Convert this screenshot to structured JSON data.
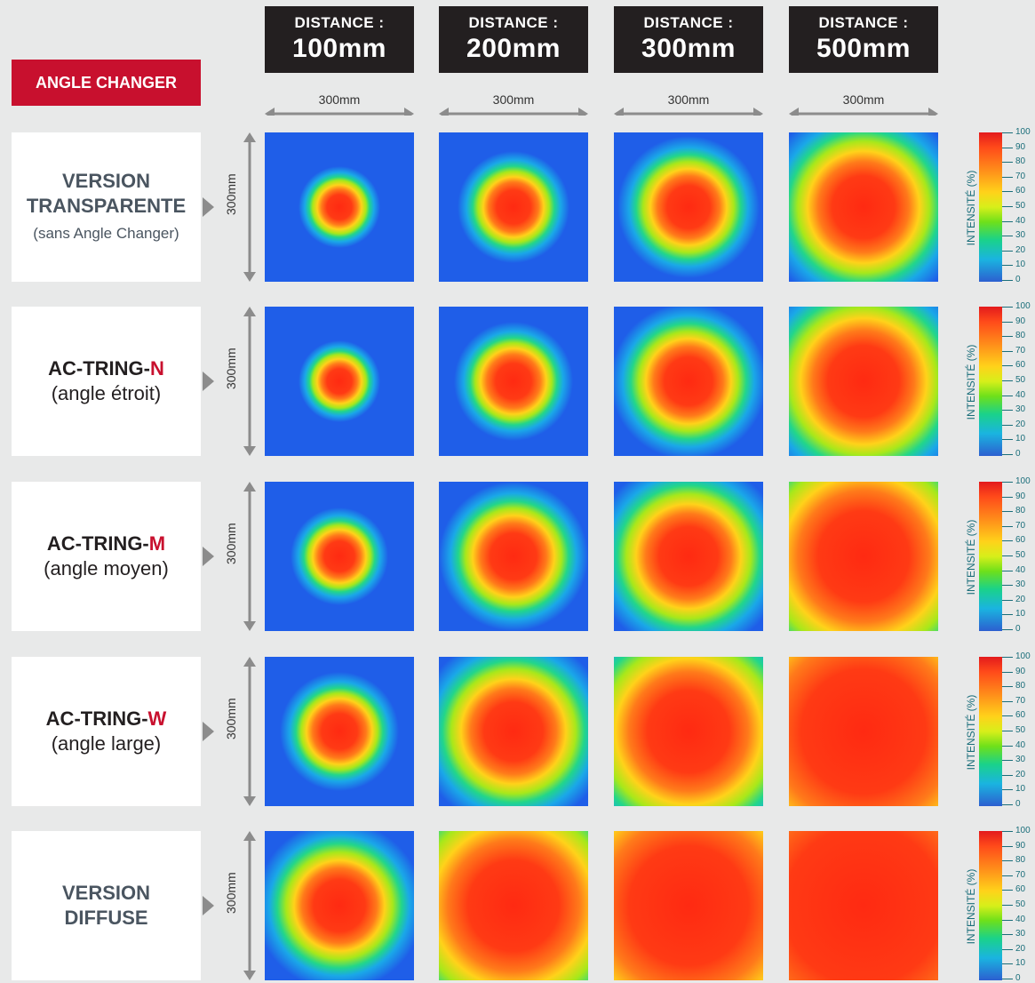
{
  "badge": "ANGLE CHANGER",
  "columns": [
    {
      "label": "DISTANCE :",
      "value": "100mm",
      "width": "300mm"
    },
    {
      "label": "DISTANCE :",
      "value": "200mm",
      "width": "300mm"
    },
    {
      "label": "DISTANCE :",
      "value": "300mm",
      "width": "300mm"
    },
    {
      "label": "DISTANCE :",
      "value": "500mm",
      "width": "300mm"
    }
  ],
  "rows": [
    {
      "name": "VERSION",
      "name2": "TRANSPARENTE",
      "sub": "(sans Angle Changer)",
      "height": "300mm"
    },
    {
      "name": "AC-TRING-",
      "suffix": "N",
      "sub": "(angle étroit)",
      "height": "300mm"
    },
    {
      "name": "AC-TRING-",
      "suffix": "M",
      "sub": "(angle moyen)",
      "height": "300mm"
    },
    {
      "name": "AC-TRING-",
      "suffix": "W",
      "sub": "(angle large)",
      "height": "300mm"
    },
    {
      "name": "VERSION",
      "name2": "DIFFUSE",
      "height": "300mm"
    }
  ],
  "scale": {
    "title": "INTENSITÉ (%)",
    "ticks": [
      "100",
      "90",
      "80",
      "70",
      "60",
      "50",
      "40",
      "30",
      "20",
      "10",
      "0"
    ]
  },
  "colors": {
    "accent": "#c8102e",
    "header_bg": "#231f20",
    "background": "#e8e9e9"
  },
  "spot_radius_fraction": [
    [
      0.22,
      0.3,
      0.38,
      0.55
    ],
    [
      0.22,
      0.32,
      0.42,
      0.62
    ],
    [
      0.26,
      0.4,
      0.52,
      0.8
    ],
    [
      0.32,
      0.52,
      0.72,
      1.1
    ],
    [
      0.45,
      0.8,
      1.05,
      1.4
    ]
  ]
}
